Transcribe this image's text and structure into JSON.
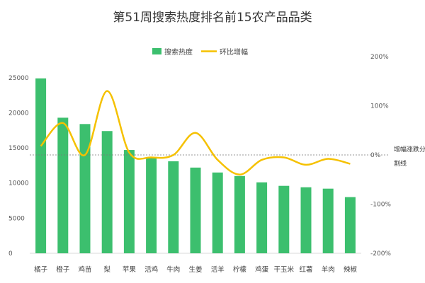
{
  "title": "第51周搜索热度排名前15农产品品类",
  "chart_data": {
    "type": "bar",
    "title": "第51周搜索热度排名前15农产品品类",
    "categories": [
      "橘子",
      "橙子",
      "鸡苗",
      "梨",
      "苹果",
      "活鸡",
      "牛肉",
      "生姜",
      "活羊",
      "柠檬",
      "鸡蛋",
      "干玉米",
      "红薯",
      "羊肉",
      "辣椒"
    ],
    "series": [
      {
        "name": "搜索热度",
        "type": "bar",
        "axis": "left",
        "color": "#3cbf6e",
        "values": [
          24900,
          19300,
          18400,
          17400,
          14700,
          13700,
          13100,
          12200,
          11500,
          11000,
          10100,
          9600,
          9400,
          9200,
          8000
        ]
      },
      {
        "name": "环比增幅",
        "type": "line",
        "axis": "right",
        "color": "#f5c100",
        "unit": "%",
        "values": [
          18,
          65,
          0,
          130,
          5,
          -5,
          0,
          45,
          -10,
          -40,
          -10,
          -5,
          -20,
          -8,
          -18
        ]
      }
    ],
    "y_left": {
      "ticks": [
        0,
        5000,
        10000,
        15000,
        20000,
        25000
      ],
      "range": [
        0,
        28000
      ]
    },
    "y_right": {
      "ticks": [
        "-200%",
        "-100%",
        "0%",
        "100%",
        "200%"
      ],
      "range": [
        -200,
        200
      ]
    },
    "reference_line": {
      "value": 0,
      "label_lines": [
        "增幅涨跌分",
        "割线"
      ],
      "style": "dashed"
    },
    "legend": {
      "position": "top-center"
    },
    "grid": false
  }
}
